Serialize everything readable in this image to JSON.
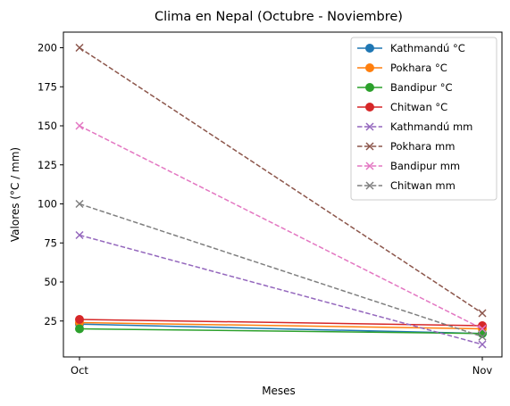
{
  "chart_data": {
    "type": "line",
    "title": "Clima en Nepal (Octubre - Noviembre)",
    "xlabel": "Meses",
    "ylabel": "Valores (°C / mm)",
    "categories": [
      "Oct",
      "Nov"
    ],
    "ylim": [
      2,
      210
    ],
    "yticks": [
      25,
      50,
      75,
      100,
      125,
      150,
      175,
      200
    ],
    "grid": false,
    "legend_position": "top-right",
    "series": [
      {
        "name": "Kathmandú °C",
        "values": [
          23,
          17
        ],
        "color": "#1f77b4",
        "marker": "circle",
        "linestyle": "solid"
      },
      {
        "name": "Pokhara °C",
        "values": [
          24,
          20
        ],
        "color": "#ff7f0e",
        "marker": "circle",
        "linestyle": "solid"
      },
      {
        "name": "Bandipur °C",
        "values": [
          20,
          17
        ],
        "color": "#2ca02c",
        "marker": "circle",
        "linestyle": "solid"
      },
      {
        "name": "Chitwan °C",
        "values": [
          26,
          22
        ],
        "color": "#d62728",
        "marker": "circle",
        "linestyle": "solid"
      },
      {
        "name": "Kathmandú mm",
        "values": [
          80,
          10
        ],
        "color": "#9467bd",
        "marker": "x",
        "linestyle": "dashed"
      },
      {
        "name": "Pokhara mm",
        "values": [
          200,
          30
        ],
        "color": "#8c564b",
        "marker": "x",
        "linestyle": "dashed"
      },
      {
        "name": "Bandipur mm",
        "values": [
          150,
          20
        ],
        "color": "#e377c2",
        "marker": "x",
        "linestyle": "dashed"
      },
      {
        "name": "Chitwan mm",
        "values": [
          100,
          15
        ],
        "color": "#7f7f7f",
        "marker": "x",
        "linestyle": "dashed"
      }
    ]
  }
}
